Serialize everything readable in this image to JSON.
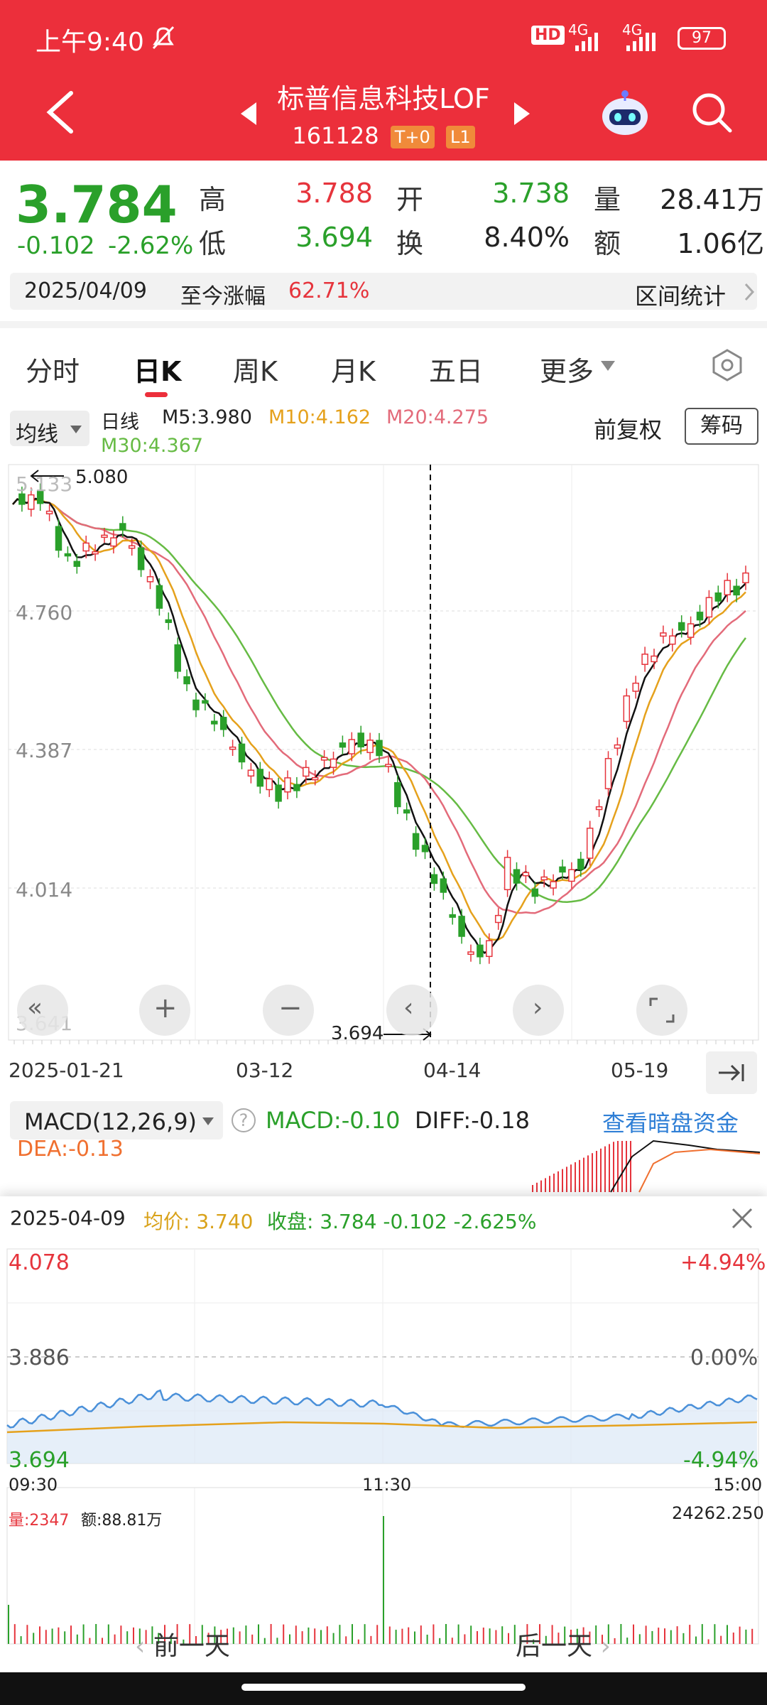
{
  "status": {
    "time": "上午9:40",
    "hd": "HD",
    "net1": "4G",
    "net2": "4G",
    "battery": "97"
  },
  "header": {
    "name": "标普信息科技LOF",
    "code": "161128",
    "tag1": "T+0",
    "tag2": "L1"
  },
  "quote": {
    "price": "3.784",
    "change": "-0.102",
    "pct": "-2.62%",
    "high_l": "高",
    "high": "3.788",
    "open_l": "开",
    "open": "3.738",
    "vol_l": "量",
    "vol": "28.41万",
    "low_l": "低",
    "low": "3.694",
    "turn_l": "换",
    "turn": "8.40%",
    "amt_l": "额",
    "amt": "1.06亿",
    "date": "2025/04/09",
    "since_l": "至今涨幅",
    "since": "62.71%",
    "range": "区间统计"
  },
  "tabs": [
    "分时",
    "日K",
    "周K",
    "月K",
    "五日",
    "更多"
  ],
  "kline": {
    "ma_btn": "均线",
    "period": "日线",
    "m5": "M5:3.980",
    "m10": "M10:4.162",
    "m20": "M20:4.275",
    "m30": "M30:4.367",
    "adj": "前复权",
    "chip": "筹码",
    "max_lbl": "5.080",
    "min_lbl": "3.694",
    "y_labels": [
      "5.133",
      "4.760",
      "4.387",
      "4.014",
      "3.641"
    ],
    "x_labels": [
      "2025-01-21",
      "03-12",
      "04-14",
      "05-19"
    ]
  },
  "macd": {
    "title": "MACD(12,26,9)",
    "macd": "MACD:-0.10",
    "diff": "DIFF:-0.18",
    "dea": "DEA:-0.13",
    "link": "查看暗盘资金"
  },
  "intraday": {
    "date": "2025-04-09",
    "avg": "均价: 3.740",
    "close": "收盘: 3.784 -0.102 -2.625%",
    "ytop": "4.078",
    "ymid": "3.886",
    "ybot": "3.694",
    "ptop": "+4.94%",
    "pmid": "0.00%",
    "pbot": "-4.94%",
    "t1": "09:30",
    "t2": "11:30",
    "t3": "15:00",
    "vol": "量:2347",
    "amt": "额:88.81万",
    "vmax": "24262.250"
  },
  "nav": {
    "prev": "前一天",
    "next": "后一天"
  },
  "colors": {
    "brand": "#ec2f3b",
    "up": "#e6343c",
    "down": "#2aa02a",
    "ma5": "#111111",
    "ma10": "#e5a11c",
    "ma20": "#e36b7a",
    "ma30": "#66bb44"
  }
}
